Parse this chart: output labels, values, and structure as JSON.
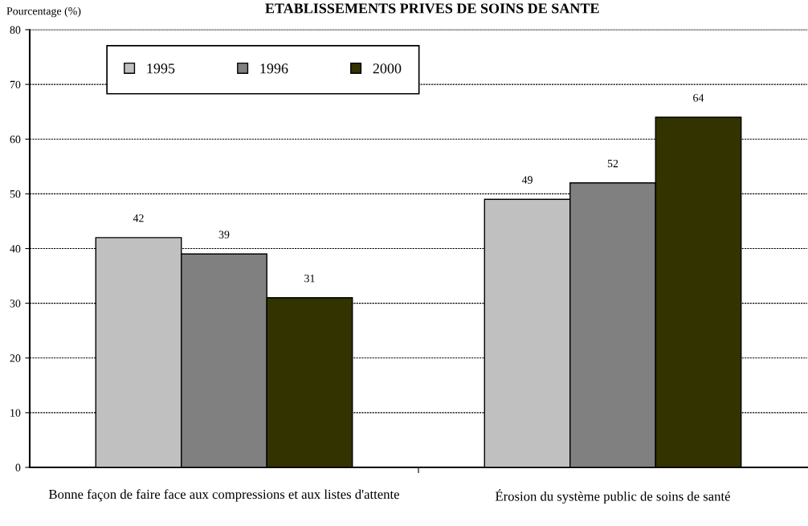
{
  "chart_data": {
    "type": "bar",
    "title": "ETABLISSEMENTS PRIVES DE SOINS DE SANTE",
    "ylabel": "Pourcentage (%)",
    "categories": [
      "Bonne façon de faire face aux compressions et aux listes d'attente",
      "Érosion du système public de soins de santé"
    ],
    "series": [
      {
        "name": "1995",
        "color": "#c0c0c0",
        "values": [
          42,
          49
        ]
      },
      {
        "name": "1996",
        "color": "#808080",
        "values": [
          39,
          52
        ]
      },
      {
        "name": "2000",
        "color": "#333300",
        "values": [
          31,
          64
        ]
      }
    ],
    "ylim": [
      0,
      80
    ],
    "yticks": [
      0,
      10,
      20,
      30,
      40,
      50,
      60,
      70,
      80
    ],
    "grid": "y",
    "legend": "top left",
    "data_labels": true
  }
}
